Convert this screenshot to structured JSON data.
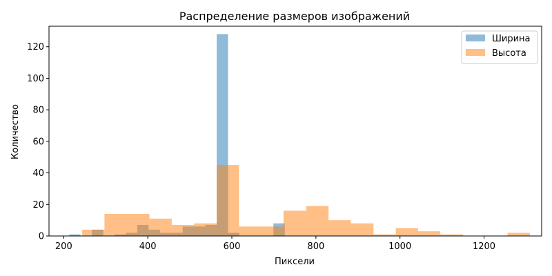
{
  "chart_data": {
    "type": "histogram",
    "title": "Распределение размеров изображений",
    "xlabel": "Пиксели",
    "ylabel": "Количество",
    "xlim": [
      165,
      1337
    ],
    "ylim": [
      0,
      133
    ],
    "xticks": [
      200,
      400,
      600,
      800,
      1000,
      1200
    ],
    "yticks": [
      0,
      20,
      40,
      60,
      80,
      100,
      120
    ],
    "grid": false,
    "legend_position": "top-right",
    "series": [
      {
        "name": "Ширина",
        "color": "#1f77b4",
        "opacity": 0.5,
        "bins": [
          {
            "x0": 213,
            "x1": 240,
            "count": 1
          },
          {
            "x0": 267,
            "x1": 294,
            "count": 4
          },
          {
            "x0": 321,
            "x1": 348,
            "count": 1
          },
          {
            "x0": 348,
            "x1": 375,
            "count": 2
          },
          {
            "x0": 375,
            "x1": 402,
            "count": 7
          },
          {
            "x0": 402,
            "x1": 429,
            "count": 4
          },
          {
            "x0": 429,
            "x1": 483,
            "count": 2
          },
          {
            "x0": 483,
            "x1": 537,
            "count": 6
          },
          {
            "x0": 537,
            "x1": 564,
            "count": 7
          },
          {
            "x0": 564,
            "x1": 591,
            "count": 128
          },
          {
            "x0": 591,
            "x1": 618,
            "count": 2
          },
          {
            "x0": 699,
            "x1": 726,
            "count": 8
          }
        ]
      },
      {
        "name": "Высота",
        "color": "#ff7f0e",
        "opacity": 0.5,
        "bins": [
          {
            "x0": 244,
            "x1": 297,
            "count": 4
          },
          {
            "x0": 297,
            "x1": 404,
            "count": 14
          },
          {
            "x0": 404,
            "x1": 457,
            "count": 11
          },
          {
            "x0": 457,
            "x1": 510,
            "count": 7
          },
          {
            "x0": 510,
            "x1": 564,
            "count": 8
          },
          {
            "x0": 564,
            "x1": 617,
            "count": 45
          },
          {
            "x0": 617,
            "x1": 723,
            "count": 6
          },
          {
            "x0": 723,
            "x1": 777,
            "count": 16
          },
          {
            "x0": 777,
            "x1": 830,
            "count": 19
          },
          {
            "x0": 830,
            "x1": 883,
            "count": 10
          },
          {
            "x0": 883,
            "x1": 937,
            "count": 8
          },
          {
            "x0": 937,
            "x1": 990,
            "count": 1
          },
          {
            "x0": 990,
            "x1": 1043,
            "count": 5
          },
          {
            "x0": 1043,
            "x1": 1096,
            "count": 3
          },
          {
            "x0": 1096,
            "x1": 1150,
            "count": 1
          },
          {
            "x0": 1256,
            "x1": 1309,
            "count": 2
          }
        ]
      }
    ]
  }
}
